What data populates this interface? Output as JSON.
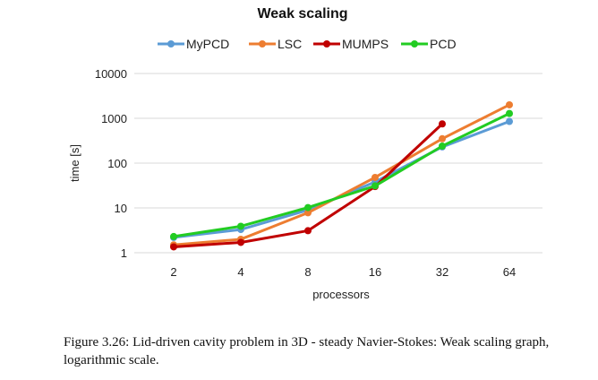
{
  "chart_data": {
    "type": "line",
    "title": "Weak scaling",
    "xlabel": "processors",
    "ylabel": "time [s]",
    "yscale": "log",
    "ylim": [
      1,
      10000
    ],
    "yticks": [
      "1",
      "10",
      "100",
      "1000",
      "10000"
    ],
    "categories": [
      "2",
      "4",
      "8",
      "16",
      "32",
      "64"
    ],
    "legend_position": "top",
    "grid": "horizontal",
    "series": [
      {
        "name": "MyPCD",
        "color": "#5b9bd5",
        "values": [
          2.2,
          3.3,
          9.0,
          38,
          230,
          850
        ]
      },
      {
        "name": "LSC",
        "color": "#ed7d31",
        "values": [
          1.5,
          2.0,
          7.8,
          48,
          350,
          2000
        ]
      },
      {
        "name": "MUMPS",
        "color": "#c00000",
        "values": [
          1.35,
          1.7,
          3.1,
          30,
          750,
          null
        ]
      },
      {
        "name": "PCD",
        "color": "#22cc22",
        "values": [
          2.3,
          3.9,
          10.2,
          31,
          240,
          1280
        ]
      }
    ]
  },
  "caption": "Figure 3.26: Lid-driven cavity problem in 3D - steady Navier-Stokes: Weak scaling graph, logarithmic scale."
}
